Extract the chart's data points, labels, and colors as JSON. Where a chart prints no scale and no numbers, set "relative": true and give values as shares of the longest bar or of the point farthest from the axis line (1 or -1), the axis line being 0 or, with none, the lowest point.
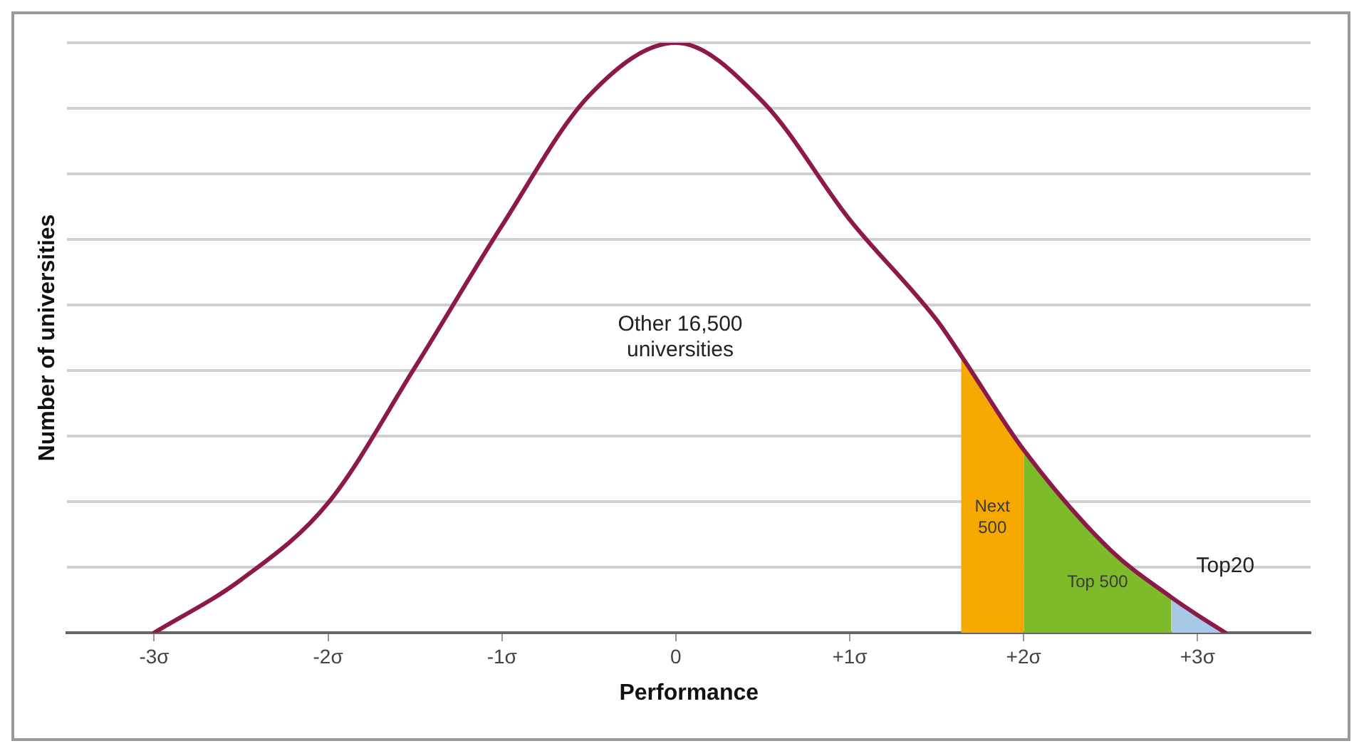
{
  "chart_data": {
    "type": "line",
    "relative": true,
    "xlabel": "Performance",
    "ylabel": "Number of universities",
    "xlim": [
      -3.5,
      3.65
    ],
    "xticks": [
      {
        "value": -3,
        "label": "-3σ"
      },
      {
        "value": -2,
        "label": "-2σ"
      },
      {
        "value": -1,
        "label": "-1σ"
      },
      0,
      {
        "value": 1,
        "label": "+1σ"
      },
      {
        "value": 2,
        "label": "+2σ"
      },
      {
        "value": 3,
        "label": "+3σ"
      }
    ],
    "grid": "y",
    "legend": false,
    "marker": "none",
    "annotations": [
      "Other 16,500 universities"
    ],
    "series": [
      {
        "color": "#8b1a4a",
        "x": [
          -3,
          -2.5,
          -2,
          -1.5,
          -1,
          -0.5,
          0,
          0.5,
          1,
          1.5,
          1.64,
          2,
          2.5,
          2.85,
          3,
          3.16
        ],
        "values": [
          0,
          0.09,
          0.22,
          0.45,
          0.69,
          0.91,
          1,
          0.9,
          0.7,
          0.53,
          0.47,
          0.31,
          0.14,
          0.06,
          0.03,
          0
        ]
      },
      {
        "name": "Next 500",
        "type": "area",
        "color": "#f5a800",
        "x": [
          1.64,
          1.8,
          2
        ],
        "values": [
          0.47,
          0.39,
          0.31
        ]
      },
      {
        "name": "Top 500",
        "type": "area",
        "color": "#7dbb2a",
        "x": [
          2,
          2.5,
          2.85
        ],
        "values": [
          0.31,
          0.14,
          0.06
        ]
      },
      {
        "name": "Top20",
        "type": "area",
        "color": "#a8c8e8",
        "x": [
          2.85,
          3,
          3.16
        ],
        "values": [
          0.06,
          0.03,
          0
        ]
      }
    ]
  }
}
